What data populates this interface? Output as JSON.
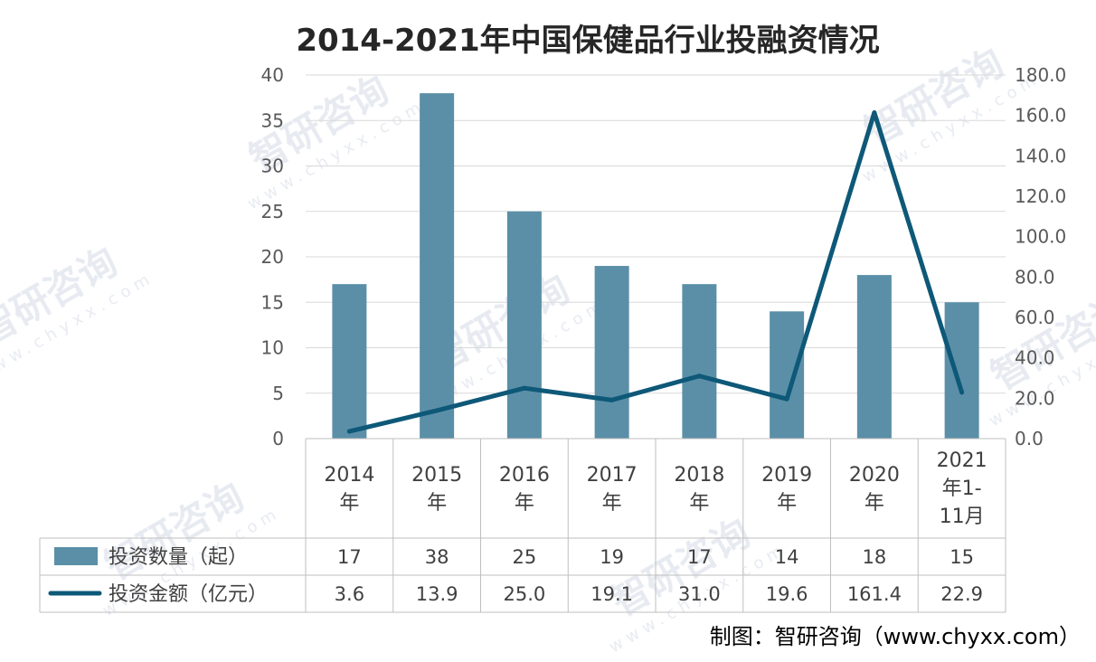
{
  "chart_data": {
    "type": "bar",
    "title": "2014-2021年中国保健品行业投融资情况",
    "categories": [
      "2014年",
      "2015年",
      "2016年",
      "2017年",
      "2018年",
      "2019年",
      "2020年",
      "2021年1-11月"
    ],
    "series": [
      {
        "name": "投资数量（起）",
        "type": "bar",
        "axis": "left",
        "values": [
          17,
          38,
          25,
          19,
          17,
          14,
          18,
          15
        ],
        "value_labels": [
          "17",
          "38",
          "25",
          "19",
          "17",
          "14",
          "18",
          "15"
        ],
        "color": "#5b8fa8"
      },
      {
        "name": "投资金额（亿元）",
        "type": "line",
        "axis": "right",
        "values": [
          3.6,
          13.9,
          25.0,
          19.1,
          31.0,
          19.6,
          161.4,
          22.9
        ],
        "value_labels": [
          "3.6",
          "13.9",
          "25.0",
          "19.1",
          "31.0",
          "19.6",
          "161.4",
          "22.9"
        ],
        "color": "#0e5878"
      }
    ],
    "y_left": {
      "range": [
        0,
        40
      ],
      "ticks": [
        "0",
        "5",
        "10",
        "15",
        "20",
        "25",
        "30",
        "35",
        "40"
      ]
    },
    "y_right": {
      "range": [
        0,
        180
      ],
      "ticks": [
        "0.0",
        "20.0",
        "40.0",
        "60.0",
        "80.0",
        "100.0",
        "120.0",
        "140.0",
        "160.0",
        "180.0"
      ]
    },
    "grid": true,
    "legend_placement": "data-table-bottom"
  },
  "source_note": "制图：智研咨询（www.chyxx.com）",
  "watermark": {
    "text": "智研咨询",
    "url": "www.chyxx.com"
  }
}
